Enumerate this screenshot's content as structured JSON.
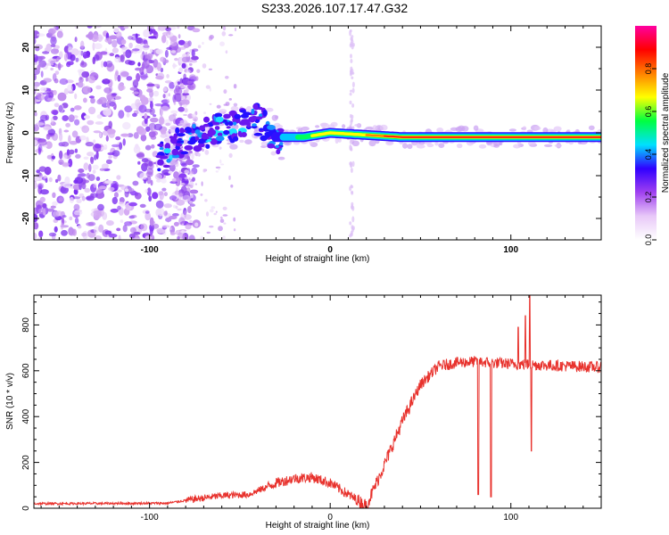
{
  "figure": {
    "title": "S233.2026.107.17.47.G32"
  },
  "chart_data": [
    {
      "type": "heatmap",
      "xlabel": "Height of straight line (km)",
      "ylabel": "Frequency (Hz)",
      "xlim": [
        -164,
        150
      ],
      "ylim": [
        -25,
        25
      ],
      "xticks": [
        -100,
        0,
        100
      ],
      "yticks": [
        -20,
        -10,
        0,
        10,
        20
      ],
      "colorbar": {
        "label": "Normalized spectral amplitude",
        "range": [
          0.0,
          1.0
        ],
        "ticks": [
          0.0,
          0.2,
          0.4,
          0.6,
          0.8
        ],
        "colors": [
          "#ffffff",
          "#e8c8f8",
          "#a040f0",
          "#3000ff",
          "#00e0ff",
          "#00ff40",
          "#ffff00",
          "#ff8000",
          "#ff0000",
          "#ff00a0"
        ]
      },
      "ridge": {
        "description": "dominant frequency track",
        "points": [
          [
            -95,
            -6
          ],
          [
            -80,
            -1
          ],
          [
            -60,
            1
          ],
          [
            -40,
            3
          ],
          [
            -30,
            -1
          ],
          [
            -15,
            -1
          ],
          [
            0,
            0
          ],
          [
            40,
            -1
          ],
          [
            100,
            -1
          ],
          [
            150,
            -1
          ]
        ]
      }
    },
    {
      "type": "line",
      "xlabel": "Height of straight line (km)",
      "ylabel": "SNR (10 * v/v)",
      "xlim": [
        -164,
        150
      ],
      "ylim": [
        0,
        930
      ],
      "xticks": [
        -100,
        0,
        100
      ],
      "yticks": [
        0,
        200,
        400,
        600,
        800
      ],
      "series": [
        {
          "name": "SNR",
          "color": "#e8322d",
          "x": [
            -164,
            -120,
            -90,
            -75,
            -60,
            -45,
            -30,
            -20,
            -10,
            0,
            10,
            20,
            30,
            40,
            50,
            60,
            70,
            80,
            82,
            84,
            88,
            89,
            90,
            95,
            105,
            110,
            111,
            112,
            120,
            150
          ],
          "y": [
            20,
            20,
            25,
            45,
            60,
            65,
            110,
            135,
            140,
            110,
            60,
            10,
            190,
            380,
            540,
            620,
            640,
            650,
            60,
            640,
            50,
            630,
            640,
            630,
            640,
            930,
            250,
            620,
            610,
            610
          ]
        }
      ]
    }
  ]
}
